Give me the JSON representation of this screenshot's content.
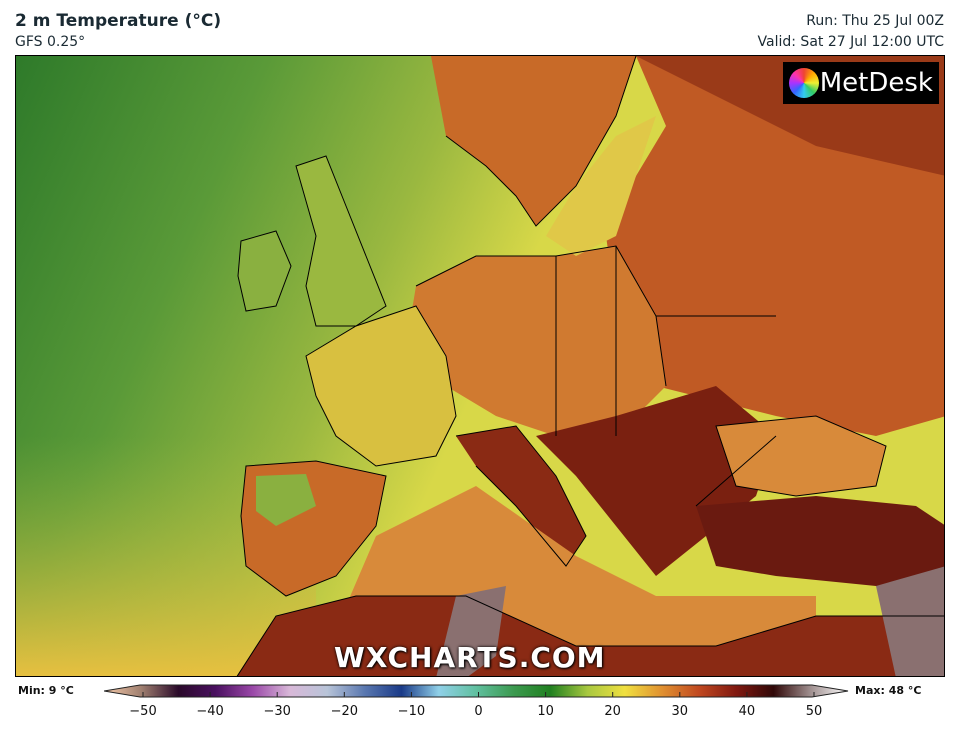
{
  "header": {
    "title": "2 m Temperature (°C)",
    "model": "GFS 0.25°",
    "run": "Run: Thu 25 Jul 00Z",
    "valid": "Valid: Sat 27 Jul 12:00 UTC"
  },
  "logo": {
    "text": "MetDesk"
  },
  "watermark": "WXCHARTS.COM",
  "legend": {
    "min_label": "Min: 9 °C",
    "max_label": "Max: 48 °C",
    "ticks": [
      "−50",
      "−40",
      "−30",
      "−20",
      "−10",
      "0",
      "10",
      "20",
      "30",
      "40",
      "50"
    ],
    "range": [
      -55,
      55
    ],
    "colors": [
      "#f4c8a8",
      "#a08070",
      "#2a0a2a",
      "#4a1060",
      "#9a48a8",
      "#d8b8d8",
      "#b8c4d8",
      "#5a78b0",
      "#1a3a88",
      "#90d0e8",
      "#60c0a0",
      "#3c9a50",
      "#208020",
      "#a8c840",
      "#f0e040",
      "#e09030",
      "#c04820",
      "#801810",
      "#300808",
      "#a09090",
      "#ffffff"
    ]
  },
  "map": {
    "ocean_colors": [
      "#2e7a2a",
      "#5a9a38",
      "#9ab840",
      "#d8d848"
    ],
    "land_colors": [
      "#e8a040",
      "#c86a28",
      "#9a3a18",
      "#6a1a10"
    ]
  }
}
